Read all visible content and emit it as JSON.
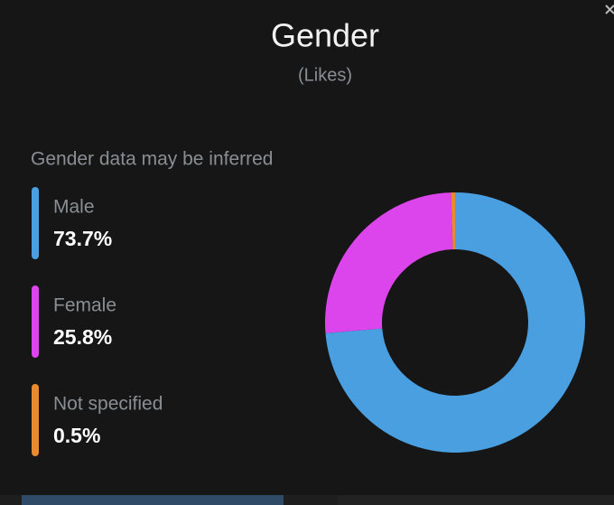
{
  "chart_data": {
    "type": "donut",
    "title": "Gender",
    "subtitle": "(Likes)",
    "note": "Gender data may be inferred",
    "categories": [
      "Male",
      "Female",
      "Not specified"
    ],
    "values": [
      73.7,
      25.8,
      0.5
    ],
    "value_labels": [
      "73.7%",
      "25.8%",
      "0.5%"
    ],
    "colors": [
      "#4a9fe0",
      "#dc45ec",
      "#e88a30"
    ]
  }
}
